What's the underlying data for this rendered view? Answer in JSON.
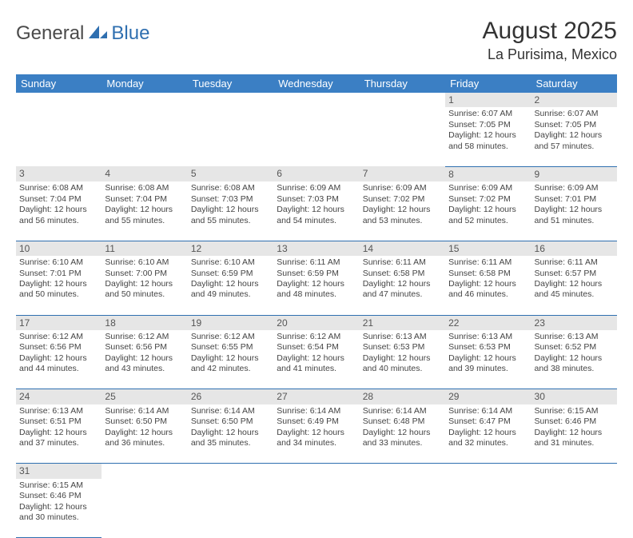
{
  "logo": {
    "general": "General",
    "blue": "Blue"
  },
  "header": {
    "title": "August 2025",
    "location": "La Purisima, Mexico"
  },
  "colors": {
    "header_bg": "#3b7fc4",
    "header_fg": "#ffffff",
    "daynum_bg": "#e6e6e6",
    "rule": "#2f6fb0",
    "logo_blue": "#2f6fb0"
  },
  "weekdays": [
    "Sunday",
    "Monday",
    "Tuesday",
    "Wednesday",
    "Thursday",
    "Friday",
    "Saturday"
  ],
  "weeks": [
    [
      null,
      null,
      null,
      null,
      null,
      {
        "n": "1",
        "sr": "Sunrise: 6:07 AM",
        "ss": "Sunset: 7:05 PM",
        "dl": "Daylight: 12 hours and 58 minutes."
      },
      {
        "n": "2",
        "sr": "Sunrise: 6:07 AM",
        "ss": "Sunset: 7:05 PM",
        "dl": "Daylight: 12 hours and 57 minutes."
      }
    ],
    [
      {
        "n": "3",
        "sr": "Sunrise: 6:08 AM",
        "ss": "Sunset: 7:04 PM",
        "dl": "Daylight: 12 hours and 56 minutes."
      },
      {
        "n": "4",
        "sr": "Sunrise: 6:08 AM",
        "ss": "Sunset: 7:04 PM",
        "dl": "Daylight: 12 hours and 55 minutes."
      },
      {
        "n": "5",
        "sr": "Sunrise: 6:08 AM",
        "ss": "Sunset: 7:03 PM",
        "dl": "Daylight: 12 hours and 55 minutes."
      },
      {
        "n": "6",
        "sr": "Sunrise: 6:09 AM",
        "ss": "Sunset: 7:03 PM",
        "dl": "Daylight: 12 hours and 54 minutes."
      },
      {
        "n": "7",
        "sr": "Sunrise: 6:09 AM",
        "ss": "Sunset: 7:02 PM",
        "dl": "Daylight: 12 hours and 53 minutes."
      },
      {
        "n": "8",
        "sr": "Sunrise: 6:09 AM",
        "ss": "Sunset: 7:02 PM",
        "dl": "Daylight: 12 hours and 52 minutes."
      },
      {
        "n": "9",
        "sr": "Sunrise: 6:09 AM",
        "ss": "Sunset: 7:01 PM",
        "dl": "Daylight: 12 hours and 51 minutes."
      }
    ],
    [
      {
        "n": "10",
        "sr": "Sunrise: 6:10 AM",
        "ss": "Sunset: 7:01 PM",
        "dl": "Daylight: 12 hours and 50 minutes."
      },
      {
        "n": "11",
        "sr": "Sunrise: 6:10 AM",
        "ss": "Sunset: 7:00 PM",
        "dl": "Daylight: 12 hours and 50 minutes."
      },
      {
        "n": "12",
        "sr": "Sunrise: 6:10 AM",
        "ss": "Sunset: 6:59 PM",
        "dl": "Daylight: 12 hours and 49 minutes."
      },
      {
        "n": "13",
        "sr": "Sunrise: 6:11 AM",
        "ss": "Sunset: 6:59 PM",
        "dl": "Daylight: 12 hours and 48 minutes."
      },
      {
        "n": "14",
        "sr": "Sunrise: 6:11 AM",
        "ss": "Sunset: 6:58 PM",
        "dl": "Daylight: 12 hours and 47 minutes."
      },
      {
        "n": "15",
        "sr": "Sunrise: 6:11 AM",
        "ss": "Sunset: 6:58 PM",
        "dl": "Daylight: 12 hours and 46 minutes."
      },
      {
        "n": "16",
        "sr": "Sunrise: 6:11 AM",
        "ss": "Sunset: 6:57 PM",
        "dl": "Daylight: 12 hours and 45 minutes."
      }
    ],
    [
      {
        "n": "17",
        "sr": "Sunrise: 6:12 AM",
        "ss": "Sunset: 6:56 PM",
        "dl": "Daylight: 12 hours and 44 minutes."
      },
      {
        "n": "18",
        "sr": "Sunrise: 6:12 AM",
        "ss": "Sunset: 6:56 PM",
        "dl": "Daylight: 12 hours and 43 minutes."
      },
      {
        "n": "19",
        "sr": "Sunrise: 6:12 AM",
        "ss": "Sunset: 6:55 PM",
        "dl": "Daylight: 12 hours and 42 minutes."
      },
      {
        "n": "20",
        "sr": "Sunrise: 6:12 AM",
        "ss": "Sunset: 6:54 PM",
        "dl": "Daylight: 12 hours and 41 minutes."
      },
      {
        "n": "21",
        "sr": "Sunrise: 6:13 AM",
        "ss": "Sunset: 6:53 PM",
        "dl": "Daylight: 12 hours and 40 minutes."
      },
      {
        "n": "22",
        "sr": "Sunrise: 6:13 AM",
        "ss": "Sunset: 6:53 PM",
        "dl": "Daylight: 12 hours and 39 minutes."
      },
      {
        "n": "23",
        "sr": "Sunrise: 6:13 AM",
        "ss": "Sunset: 6:52 PM",
        "dl": "Daylight: 12 hours and 38 minutes."
      }
    ],
    [
      {
        "n": "24",
        "sr": "Sunrise: 6:13 AM",
        "ss": "Sunset: 6:51 PM",
        "dl": "Daylight: 12 hours and 37 minutes."
      },
      {
        "n": "25",
        "sr": "Sunrise: 6:14 AM",
        "ss": "Sunset: 6:50 PM",
        "dl": "Daylight: 12 hours and 36 minutes."
      },
      {
        "n": "26",
        "sr": "Sunrise: 6:14 AM",
        "ss": "Sunset: 6:50 PM",
        "dl": "Daylight: 12 hours and 35 minutes."
      },
      {
        "n": "27",
        "sr": "Sunrise: 6:14 AM",
        "ss": "Sunset: 6:49 PM",
        "dl": "Daylight: 12 hours and 34 minutes."
      },
      {
        "n": "28",
        "sr": "Sunrise: 6:14 AM",
        "ss": "Sunset: 6:48 PM",
        "dl": "Daylight: 12 hours and 33 minutes."
      },
      {
        "n": "29",
        "sr": "Sunrise: 6:14 AM",
        "ss": "Sunset: 6:47 PM",
        "dl": "Daylight: 12 hours and 32 minutes."
      },
      {
        "n": "30",
        "sr": "Sunrise: 6:15 AM",
        "ss": "Sunset: 6:46 PM",
        "dl": "Daylight: 12 hours and 31 minutes."
      }
    ],
    [
      {
        "n": "31",
        "sr": "Sunrise: 6:15 AM",
        "ss": "Sunset: 6:46 PM",
        "dl": "Daylight: 12 hours and 30 minutes."
      },
      null,
      null,
      null,
      null,
      null,
      null
    ]
  ]
}
